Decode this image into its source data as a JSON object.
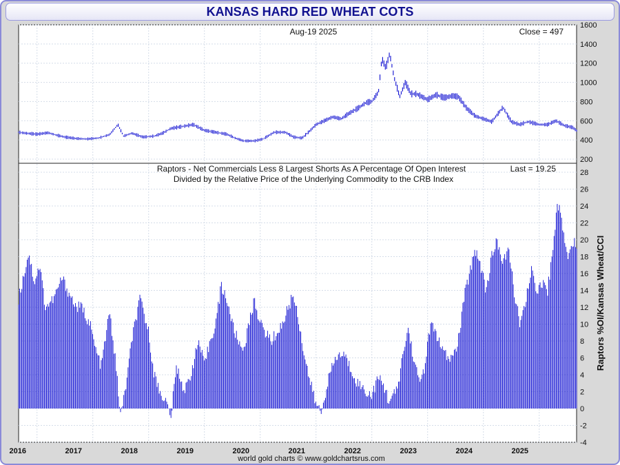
{
  "title": "KANSAS HARD RED WHEAT COTS",
  "footer": "world gold charts © www.goldchartsrus.com",
  "colors": {
    "series": "#0a0ad0",
    "grid": "#d4dce8",
    "title": "#111190"
  },
  "chart_data": [
    {
      "type": "line",
      "panel": "price",
      "header_left": "Aug-19  2025",
      "header_right": "Close = 497",
      "ylim": [
        200,
        1600
      ],
      "yticks": [
        200,
        400,
        600,
        800,
        1000,
        1200,
        1400,
        1600
      ],
      "xlim": [
        2015.67,
        2025.67
      ],
      "x_tick_labels": [
        "2016",
        "2017",
        "2018",
        "2019",
        "2020",
        "2021",
        "2022",
        "2023",
        "2024",
        "2025"
      ],
      "series": [
        {
          "x": [
            2015.67,
            2015.8,
            2016.0,
            2016.2,
            2016.35,
            2016.5,
            2016.7,
            2016.9,
            2017.1,
            2017.3,
            2017.45,
            2017.55,
            2017.7,
            2017.9,
            2018.1,
            2018.25,
            2018.4,
            2018.6,
            2018.8,
            2019.0,
            2019.2,
            2019.4,
            2019.55,
            2019.7,
            2019.9,
            2020.05,
            2020.25,
            2020.45,
            2020.6,
            2020.75,
            2020.9,
            2021.0,
            2021.15,
            2021.3,
            2021.45,
            2021.6,
            2021.75,
            2021.9,
            2022.0,
            2022.12,
            2022.18,
            2022.25,
            2022.32,
            2022.4,
            2022.5,
            2022.6,
            2022.7,
            2022.8,
            2022.9,
            2023.0,
            2023.15,
            2023.3,
            2023.45,
            2023.55,
            2023.7,
            2023.85,
            2024.0,
            2024.15,
            2024.35,
            2024.5,
            2024.65,
            2024.8,
            2025.0,
            2025.15,
            2025.3,
            2025.45,
            2025.6,
            2025.67
          ],
          "y": [
            480,
            470,
            460,
            475,
            450,
            430,
            415,
            410,
            420,
            455,
            560,
            440,
            470,
            430,
            440,
            470,
            520,
            540,
            560,
            500,
            480,
            460,
            420,
            390,
            390,
            410,
            480,
            480,
            430,
            420,
            500,
            560,
            600,
            640,
            620,
            680,
            730,
            790,
            800,
            900,
            1250,
            1150,
            1300,
            1050,
            850,
            1000,
            880,
            880,
            850,
            820,
            870,
            840,
            860,
            850,
            730,
            650,
            620,
            590,
            740,
            590,
            560,
            590,
            560,
            560,
            600,
            550,
            530,
            497
          ]
        }
      ]
    },
    {
      "type": "bar",
      "panel": "raptors",
      "header_line1": "Raptors - Net Commercials Less 8 Largest Shorts As A Percentage Of Open Interest",
      "header_line2": "Divided by the Relative Price of the Underlying Commodity to the CRB Index",
      "header_right": "Last = 19.25",
      "ylabel": "Raptors %OI/Kansas Wheat/CCI",
      "ylim": [
        -4,
        28
      ],
      "yticks": [
        -4,
        -2,
        0,
        2,
        4,
        6,
        8,
        10,
        12,
        14,
        16,
        18,
        20,
        22,
        24,
        26,
        28
      ],
      "xlim": [
        2015.67,
        2025.67
      ],
      "x_tick_labels": [
        "2016",
        "2017",
        "2018",
        "2019",
        "2020",
        "2021",
        "2022",
        "2023",
        "2024",
        "2025"
      ],
      "series": [
        {
          "x": [
            2015.67,
            2015.85,
            2015.95,
            2016.05,
            2016.15,
            2016.3,
            2016.45,
            2016.55,
            2016.7,
            2016.8,
            2016.95,
            2017.05,
            2017.15,
            2017.3,
            2017.4,
            2017.5,
            2017.6,
            2017.72,
            2017.85,
            2018.0,
            2018.1,
            2018.2,
            2018.3,
            2018.4,
            2018.5,
            2018.65,
            2018.75,
            2018.9,
            2019.0,
            2019.1,
            2019.2,
            2019.3,
            2019.4,
            2019.5,
            2019.6,
            2019.7,
            2019.8,
            2019.9,
            2020.0,
            2020.1,
            2020.2,
            2020.3,
            2020.4,
            2020.5,
            2020.6,
            2020.7,
            2020.8,
            2020.9,
            2021.0,
            2021.1,
            2021.2,
            2021.35,
            2021.5,
            2021.6,
            2021.75,
            2021.9,
            2022.0,
            2022.1,
            2022.2,
            2022.3,
            2022.45,
            2022.55,
            2022.65,
            2022.75,
            2022.85,
            2022.95,
            2023.05,
            2023.15,
            2023.25,
            2023.35,
            2023.45,
            2023.55,
            2023.65,
            2023.75,
            2023.85,
            2023.95,
            2024.05,
            2024.15,
            2024.25,
            2024.35,
            2024.45,
            2024.55,
            2024.65,
            2024.75,
            2024.85,
            2024.95,
            2025.05,
            2025.15,
            2025.25,
            2025.32,
            2025.4,
            2025.5,
            2025.6,
            2025.67
          ],
          "y": [
            13,
            18.5,
            15,
            17,
            12,
            13,
            15.5,
            14,
            12,
            12,
            10,
            7,
            5,
            11.5,
            6,
            -1,
            3,
            9,
            13,
            9,
            4,
            2,
            1,
            -1,
            5,
            2,
            4,
            8,
            5,
            8,
            10,
            14.5,
            13,
            10,
            8,
            7,
            10,
            13,
            10,
            9,
            8,
            9,
            10,
            12,
            13.5,
            10,
            6,
            3,
            0.5,
            -0.5,
            3,
            6,
            6.5,
            5,
            3,
            2,
            1.5,
            3.5,
            3,
            1,
            2,
            6,
            9.5,
            6,
            3,
            5,
            10,
            9,
            7,
            6,
            6,
            8,
            13,
            16,
            19,
            17,
            14,
            18,
            20,
            17,
            19,
            14,
            10,
            12,
            16.5,
            14,
            15,
            14,
            19,
            24.5,
            22.5,
            18,
            20,
            19.25
          ]
        }
      ]
    }
  ]
}
